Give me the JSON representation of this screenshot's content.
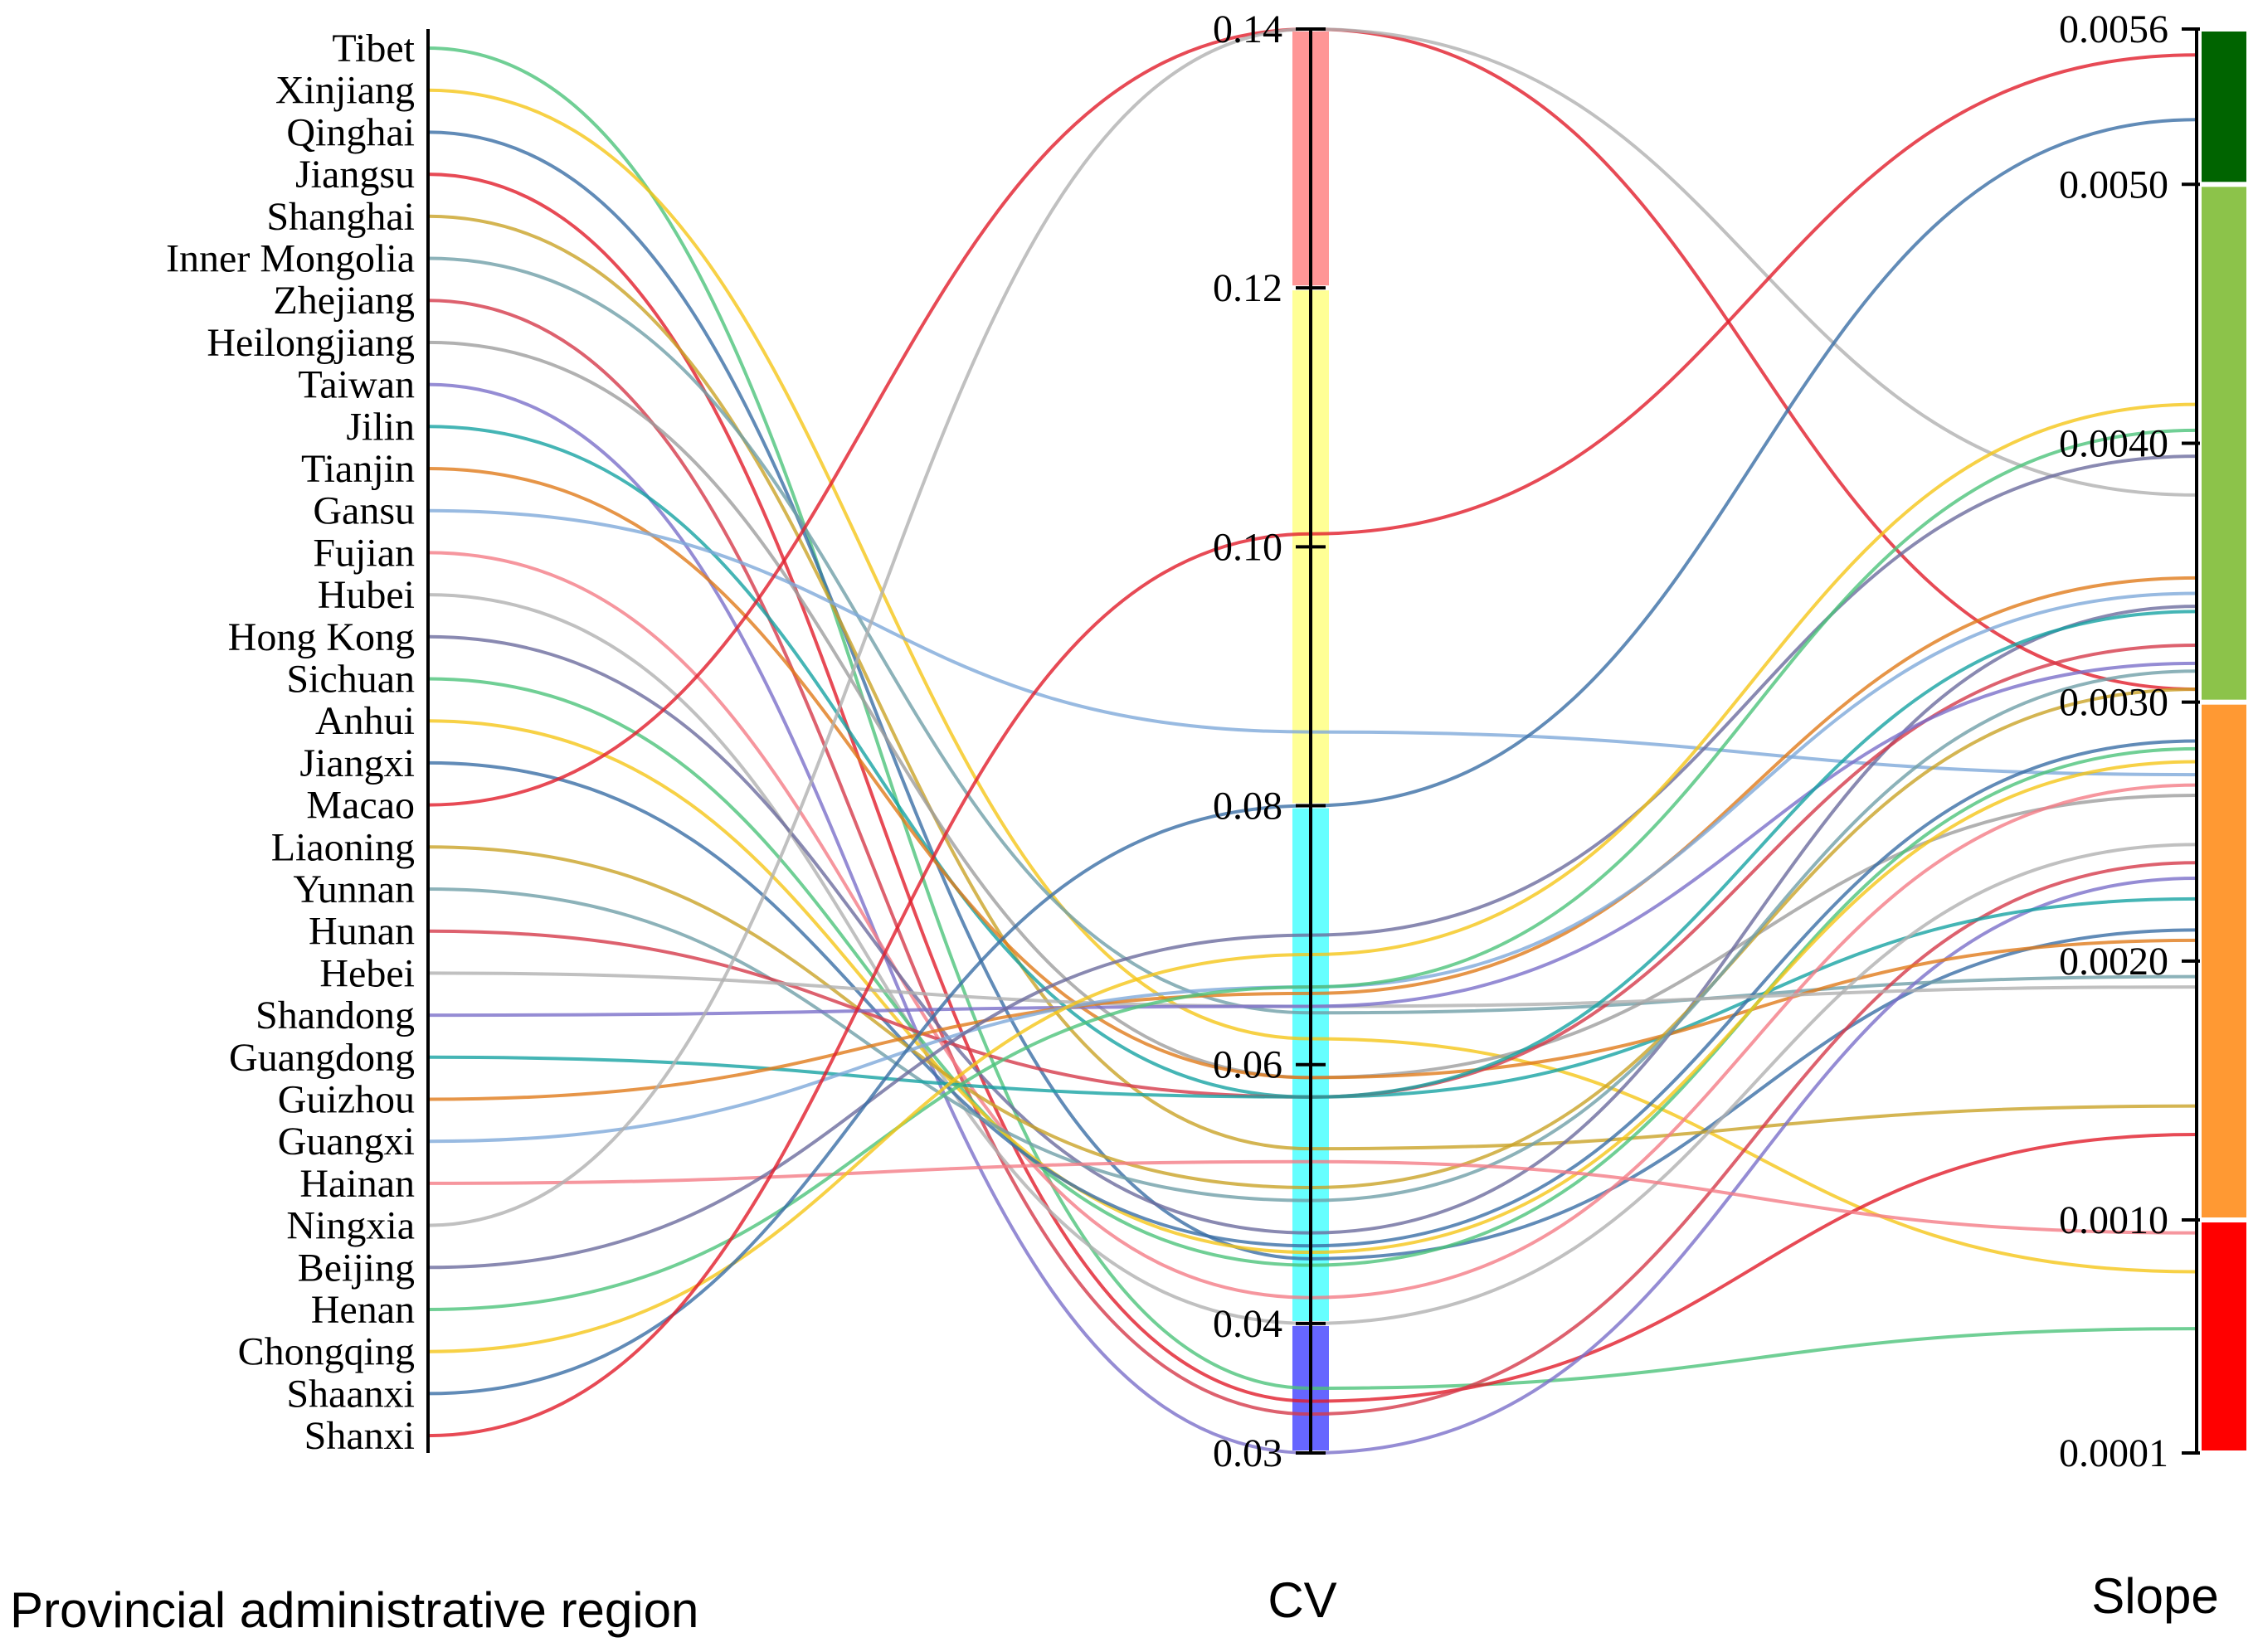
{
  "chart_data": {
    "type": "parallel-coordinates",
    "axes": [
      {
        "key": "region",
        "title": "Provincial administrative region"
      },
      {
        "key": "cv",
        "title": "CV",
        "range": [
          0.03,
          0.14
        ],
        "ticks": [
          "0.14",
          "0.12",
          "0.10",
          "0.08",
          "0.06",
          "0.04",
          "0.03"
        ]
      },
      {
        "key": "slope",
        "title": "Slope",
        "range": [
          0.0001,
          0.0056
        ],
        "ticks": [
          "0.0056",
          "0.0050",
          "0.0040",
          "0.0030",
          "0.0020",
          "0.0010",
          "0.0001"
        ]
      }
    ],
    "cv_bands": [
      {
        "from": 0.12,
        "to": 0.14,
        "color": "#ff9696"
      },
      {
        "from": 0.08,
        "to": 0.12,
        "color": "#ffff96"
      },
      {
        "from": 0.04,
        "to": 0.08,
        "color": "#66ffff"
      },
      {
        "from": 0.03,
        "to": 0.04,
        "color": "#6666ff"
      }
    ],
    "slope_bands": [
      {
        "from": 0.005,
        "to": 0.0056,
        "color": "#006400"
      },
      {
        "from": 0.003,
        "to": 0.005,
        "color": "#8cc34a"
      },
      {
        "from": 0.001,
        "to": 0.003,
        "color": "#ff9933"
      },
      {
        "from": 0.0001,
        "to": 0.001,
        "color": "#ff0000"
      }
    ],
    "regions": [
      {
        "name": "Tibet",
        "cv": 0.035,
        "slope": 0.00058,
        "color": "#4cc37a"
      },
      {
        "name": "Xinjiang",
        "cv": 0.062,
        "slope": 0.0008,
        "color": "#f5c518"
      },
      {
        "name": "Qinghai",
        "cv": 0.045,
        "slope": 0.00212,
        "color": "#3a6ea5"
      },
      {
        "name": "Jiangsu",
        "cv": 0.034,
        "slope": 0.00133,
        "color": "#e11d2a"
      },
      {
        "name": "Shanghai",
        "cv": 0.0535,
        "slope": 0.00144,
        "color": "#c9a227"
      },
      {
        "name": "Inner Mongolia",
        "cv": 0.064,
        "slope": 0.00194,
        "color": "#6f9fa8"
      },
      {
        "name": "Zhejiang",
        "cv": 0.033,
        "slope": 0.00238,
        "color": "#d43a4a"
      },
      {
        "name": "Heilongjiang",
        "cv": 0.059,
        "slope": 0.00264,
        "color": "#9e9e9e"
      },
      {
        "name": "Taiwan",
        "cv": 0.03,
        "slope": 0.00232,
        "color": "#7b6fc9"
      },
      {
        "name": "Jilin",
        "cv": 0.0575,
        "slope": 0.00224,
        "color": "#17a2a2"
      },
      {
        "name": "Tianjin",
        "cv": 0.059,
        "slope": 0.00208,
        "color": "#e07b1a"
      },
      {
        "name": "Gansu",
        "cv": 0.0857,
        "slope": 0.00272,
        "color": "#7ea9d9"
      },
      {
        "name": "Fujian",
        "cv": 0.042,
        "slope": 0.00268,
        "color": "#f47c86"
      },
      {
        "name": "Hubei",
        "cv": 0.04,
        "slope": 0.00245,
        "color": "#b0b0b0"
      },
      {
        "name": "Hong Kong",
        "cv": 0.047,
        "slope": 0.00337,
        "color": "#6b6b9e"
      },
      {
        "name": "Sichuan",
        "cv": 0.0445,
        "slope": 0.00282,
        "color": "#4cc37a"
      },
      {
        "name": "Anhui",
        "cv": 0.0455,
        "slope": 0.00277,
        "color": "#f5c518"
      },
      {
        "name": "Jiangxi",
        "cv": 0.046,
        "slope": 0.00285,
        "color": "#3a6ea5"
      },
      {
        "name": "Macao",
        "cv": 0.14,
        "slope": 0.00305,
        "color": "#e11d2a"
      },
      {
        "name": "Liaoning",
        "cv": 0.0505,
        "slope": 0.00305,
        "color": "#c9a227"
      },
      {
        "name": "Yunnan",
        "cv": 0.0495,
        "slope": 0.00312,
        "color": "#6f9fa8"
      },
      {
        "name": "Hunan",
        "cv": 0.0575,
        "slope": 0.00322,
        "color": "#d43a4a"
      },
      {
        "name": "Hebei",
        "cv": 0.0645,
        "slope": 0.0019,
        "color": "#b0b0b0"
      },
      {
        "name": "Shandong",
        "cv": 0.0645,
        "slope": 0.00315,
        "color": "#7b6fc9"
      },
      {
        "name": "Guangdong",
        "cv": 0.0575,
        "slope": 0.00335,
        "color": "#17a2a2"
      },
      {
        "name": "Guizhou",
        "cv": 0.0655,
        "slope": 0.00348,
        "color": "#e07b1a"
      },
      {
        "name": "Guangxi",
        "cv": 0.066,
        "slope": 0.00342,
        "color": "#7ea9d9"
      },
      {
        "name": "Hainan",
        "cv": 0.0525,
        "slope": 0.00095,
        "color": "#f47c86"
      },
      {
        "name": "Ningxia",
        "cv": 0.14,
        "slope": 0.0038,
        "color": "#b0b0b0"
      },
      {
        "name": "Beijing",
        "cv": 0.07,
        "slope": 0.00395,
        "color": "#6b6b9e"
      },
      {
        "name": "Henan",
        "cv": 0.066,
        "slope": 0.00405,
        "color": "#4cc37a"
      },
      {
        "name": "Chongqing",
        "cv": 0.0685,
        "slope": 0.00415,
        "color": "#f5c518"
      },
      {
        "name": "Shaanxi",
        "cv": 0.08,
        "slope": 0.00525,
        "color": "#3a6ea5"
      },
      {
        "name": "Shanxi",
        "cv": 0.101,
        "slope": 0.0055,
        "color": "#e11d2a"
      }
    ]
  }
}
